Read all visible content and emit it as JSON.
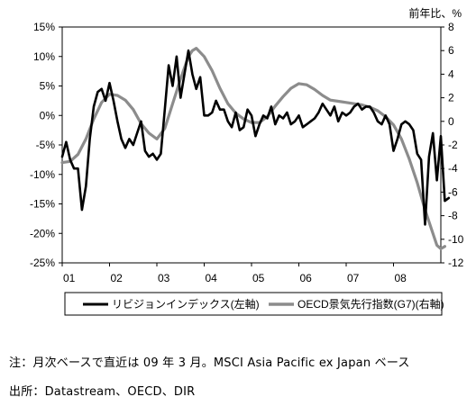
{
  "chart_data": {
    "type": "line",
    "right_axis_unit": "前年比、%",
    "left_axis": {
      "min": -25,
      "max": 15,
      "step": 5,
      "tick_labels": [
        "15%",
        "10%",
        "5%",
        "0%",
        "-5%",
        "-10%",
        "-15%",
        "-20%",
        "-25%"
      ]
    },
    "right_axis": {
      "min": -12,
      "max": 8,
      "step": 2,
      "tick_labels": [
        "8",
        "6",
        "4",
        "2",
        "0",
        "-2",
        "-4",
        "-6",
        "-8",
        "-10",
        "-12"
      ]
    },
    "x_axis": {
      "start": 2001.0,
      "end": 2009.0,
      "tick_labels": [
        "01",
        "02",
        "03",
        "04",
        "05",
        "06",
        "07",
        "08"
      ],
      "tick_positions": [
        2001,
        2002,
        2003,
        2004,
        2005,
        2006,
        2007,
        2008
      ]
    },
    "grid": false,
    "legend_position": "bottom",
    "series": [
      {
        "name": "リビジョンインデックス(左軸)",
        "axis": "left",
        "color": "#000000",
        "width": 2.6,
        "x": [
          2001.0,
          2001.083,
          2001.167,
          2001.25,
          2001.333,
          2001.417,
          2001.5,
          2001.583,
          2001.667,
          2001.75,
          2001.833,
          2001.917,
          2002.0,
          2002.083,
          2002.167,
          2002.25,
          2002.333,
          2002.417,
          2002.5,
          2002.583,
          2002.667,
          2002.75,
          2002.833,
          2002.917,
          2003.0,
          2003.083,
          2003.167,
          2003.25,
          2003.333,
          2003.417,
          2003.5,
          2003.583,
          2003.667,
          2003.75,
          2003.833,
          2003.917,
          2004.0,
          2004.083,
          2004.167,
          2004.25,
          2004.333,
          2004.417,
          2004.5,
          2004.583,
          2004.667,
          2004.75,
          2004.833,
          2004.917,
          2005.0,
          2005.083,
          2005.167,
          2005.25,
          2005.333,
          2005.417,
          2005.5,
          2005.583,
          2005.667,
          2005.75,
          2005.833,
          2005.917,
          2006.0,
          2006.083,
          2006.167,
          2006.25,
          2006.333,
          2006.417,
          2006.5,
          2006.583,
          2006.667,
          2006.75,
          2006.833,
          2006.917,
          2007.0,
          2007.083,
          2007.167,
          2007.25,
          2007.333,
          2007.417,
          2007.5,
          2007.583,
          2007.667,
          2007.75,
          2007.833,
          2007.917,
          2008.0,
          2008.083,
          2008.167,
          2008.25,
          2008.333,
          2008.417,
          2008.5,
          2008.583,
          2008.667,
          2008.75,
          2008.833,
          2008.917,
          2009.0,
          2009.083,
          2009.167
        ],
        "y": [
          -7.0,
          -4.5,
          -7.5,
          -9.0,
          -9.0,
          -16.0,
          -12.0,
          -4.0,
          1.5,
          4.0,
          4.5,
          2.5,
          5.5,
          2.5,
          -1.0,
          -4.0,
          -5.5,
          -4.0,
          -5.0,
          -3.0,
          -1.0,
          -6.0,
          -7.0,
          -6.5,
          -7.5,
          -6.5,
          1.0,
          8.5,
          5.0,
          10.0,
          3.0,
          7.0,
          11.0,
          7.0,
          4.5,
          6.5,
          0.0,
          0.0,
          0.5,
          2.5,
          1.0,
          1.0,
          -1.0,
          -2.0,
          0.5,
          -2.5,
          -2.0,
          1.0,
          0.0,
          -3.5,
          -1.5,
          0.0,
          -0.5,
          1.5,
          -1.5,
          0.0,
          -0.5,
          0.5,
          -1.5,
          -1.0,
          0.0,
          -2.0,
          -1.5,
          -1.0,
          -0.5,
          0.5,
          2.0,
          1.0,
          0.0,
          1.5,
          -1.0,
          0.5,
          0.0,
          0.5,
          1.5,
          2.0,
          1.0,
          1.5,
          1.5,
          0.5,
          -1.0,
          -1.5,
          0.0,
          -1.5,
          -6.0,
          -4.0,
          -1.5,
          -1.0,
          -1.5,
          -2.5,
          -6.5,
          -7.5,
          -18.5,
          -7.0,
          -3.0,
          -11.0,
          -3.5,
          -14.5,
          -14.0
        ]
      },
      {
        "name": "OECD景気先行指数(G7)(右軸)",
        "axis": "right",
        "color": "#8c8c8c",
        "width": 3.2,
        "x": [
          2001.0,
          2001.167,
          2001.333,
          2001.5,
          2001.667,
          2001.833,
          2002.0,
          2002.167,
          2002.333,
          2002.5,
          2002.667,
          2002.833,
          2003.0,
          2003.167,
          2003.333,
          2003.5,
          2003.667,
          2003.75,
          2003.833,
          2004.0,
          2004.167,
          2004.333,
          2004.5,
          2004.667,
          2004.833,
          2005.0,
          2005.167,
          2005.333,
          2005.5,
          2005.667,
          2005.833,
          2006.0,
          2006.167,
          2006.333,
          2006.5,
          2006.667,
          2006.833,
          2007.0,
          2007.167,
          2007.333,
          2007.5,
          2007.667,
          2007.833,
          2008.0,
          2008.167,
          2008.333,
          2008.5,
          2008.667,
          2008.833,
          2008.917,
          2009.0,
          2009.083
        ],
        "y": [
          -3.5,
          -3.4,
          -2.8,
          -1.5,
          0.2,
          1.6,
          2.3,
          2.2,
          1.8,
          1.0,
          -0.2,
          -1.0,
          -1.5,
          -0.6,
          1.5,
          3.6,
          5.5,
          6.0,
          6.2,
          5.5,
          4.3,
          2.8,
          1.5,
          0.7,
          0.2,
          -0.1,
          -0.1,
          0.4,
          1.3,
          2.1,
          2.8,
          3.2,
          3.1,
          2.7,
          2.2,
          1.8,
          1.7,
          1.6,
          1.5,
          1.4,
          1.2,
          0.9,
          0.4,
          -0.3,
          -1.5,
          -3.2,
          -5.2,
          -7.5,
          -9.5,
          -10.5,
          -10.8,
          -10.6
        ]
      }
    ]
  },
  "notes": {
    "line1": "注：月次ベースで直近は 09 年 3 月。MSCI Asia Pacific ex Japan ベース",
    "line2": "出所：Datastream、OECD、DIR"
  }
}
